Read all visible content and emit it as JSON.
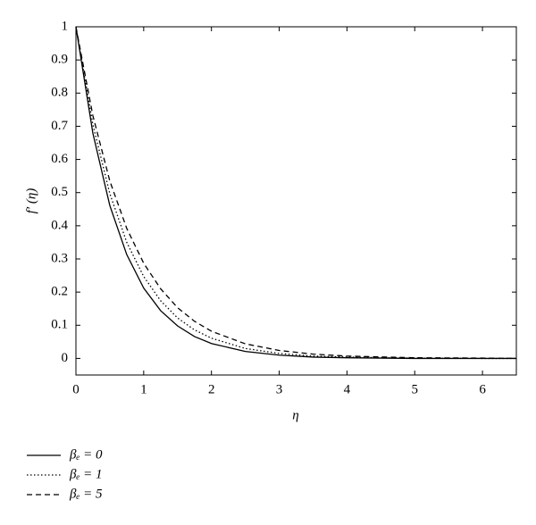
{
  "chart_data": {
    "type": "line",
    "x_label": "η",
    "y_label": "f′ (η)",
    "x": [
      0,
      0.25,
      0.5,
      0.75,
      1,
      1.25,
      1.5,
      1.75,
      2,
      2.5,
      3,
      3.5,
      4,
      5,
      6,
      6.5
    ],
    "series": [
      {
        "name": "βₑ = 0",
        "color": "#000000",
        "style": "solid",
        "values": [
          1,
          0.679,
          0.461,
          0.313,
          0.212,
          0.144,
          0.098,
          0.066,
          0.045,
          0.021,
          0.01,
          0.004,
          0.002,
          0,
          0,
          0
        ]
      },
      {
        "name": "βₑ = 1",
        "color": "#000000",
        "style": "dotted",
        "values": [
          1,
          0.705,
          0.497,
          0.35,
          0.247,
          0.174,
          0.122,
          0.086,
          0.061,
          0.03,
          0.015,
          0.007,
          0.004,
          0.001,
          0,
          0
        ]
      },
      {
        "name": "βₑ = 5",
        "color": "#000000",
        "style": "dashed",
        "values": [
          1,
          0.732,
          0.535,
          0.392,
          0.287,
          0.21,
          0.153,
          0.112,
          0.082,
          0.044,
          0.024,
          0.013,
          0.007,
          0.002,
          0.001,
          0
        ]
      }
    ],
    "xlim": [
      0,
      6.5
    ],
    "xticks": [
      0,
      1,
      2,
      3,
      4,
      5,
      6
    ],
    "ylim": [
      -0.05,
      1
    ],
    "yticks": [
      0,
      0.1,
      0.2,
      0.3,
      0.4,
      0.5,
      0.6,
      0.7,
      0.8,
      0.9,
      1
    ],
    "grid": false,
    "legend": "below-left"
  }
}
